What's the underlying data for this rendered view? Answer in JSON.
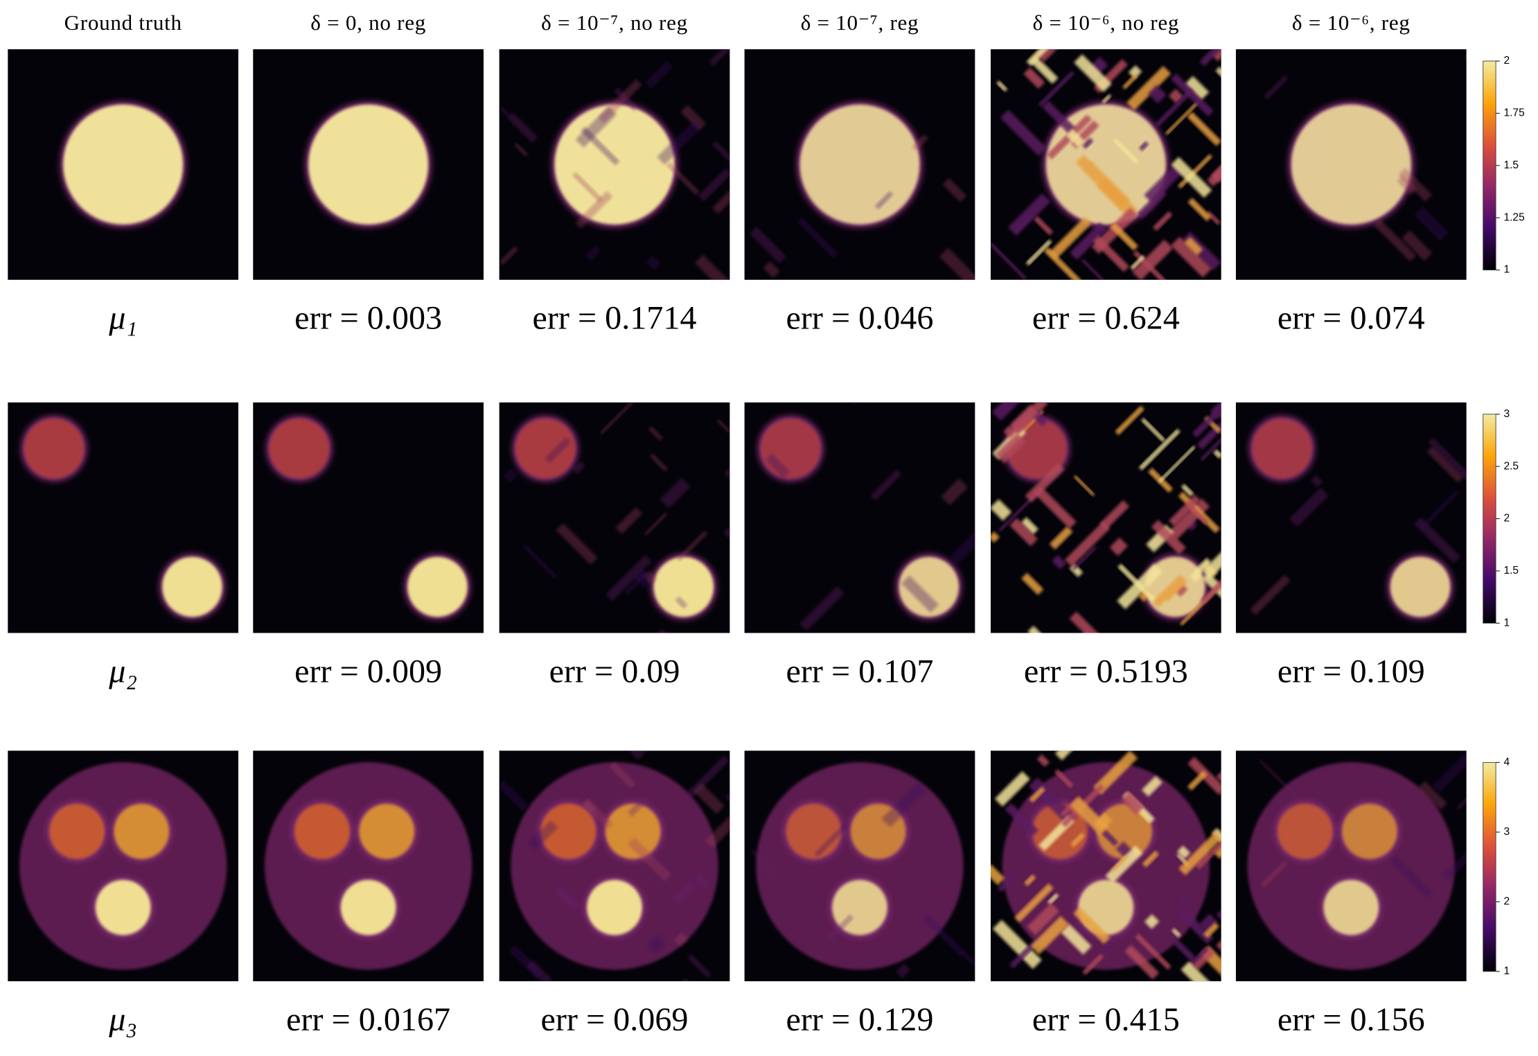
{
  "headers": [
    "Ground truth",
    "δ = 0, no reg",
    "δ = 10⁻⁷, no reg",
    "δ = 10⁻⁷, reg",
    "δ = 10⁻⁶, no reg",
    "δ = 10⁻⁶, reg"
  ],
  "rows": [
    {
      "label": "μ₁",
      "errors": [
        "err = 0.003",
        "err = 0.1714",
        "err = 0.046",
        "err = 0.624",
        "err = 0.074"
      ],
      "colorbar_ticks": [
        1,
        1.25,
        1.5,
        1.75,
        2
      ]
    },
    {
      "label": "μ₂",
      "errors": [
        "err = 0.009",
        "err = 0.09",
        "err = 0.107",
        "err = 0.5193",
        "err = 0.109"
      ],
      "colorbar_ticks": [
        1,
        1.5,
        2,
        2.5,
        3
      ]
    },
    {
      "label": "μ₃",
      "errors": [
        "err = 0.0167",
        "err = 0.069",
        "err = 0.129",
        "err = 0.415",
        "err = 0.156"
      ],
      "colorbar_ticks": [
        1,
        2,
        3,
        4
      ]
    }
  ]
}
